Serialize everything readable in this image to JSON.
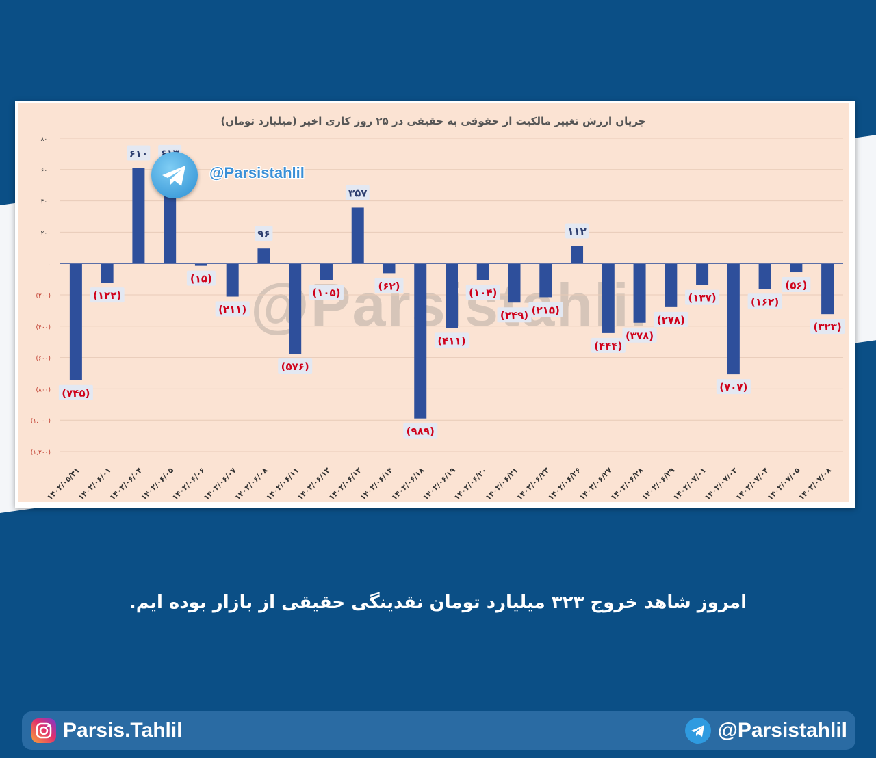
{
  "chart_data": {
    "type": "bar",
    "title": "جریان ارزش تغییر مالکیت از حقوقی به حقیقی در ۲۵ روز کاری اخیر (میلیارد تومان)",
    "ylim": [
      -1200,
      800
    ],
    "yticks": [
      800,
      600,
      400,
      200,
      0,
      -200,
      -400,
      -600,
      -800,
      -1000,
      -1200
    ],
    "ytick_labels": [
      "۸۰۰",
      "۶۰۰",
      "۴۰۰",
      "۲۰۰",
      "۰",
      "(۲۰۰)",
      "(۴۰۰)",
      "(۶۰۰)",
      "(۸۰۰)",
      "(۱,۰۰۰)",
      "(۱,۲۰۰)"
    ],
    "grid": true,
    "colors": {
      "bar": "#2e4f9b",
      "positive_label": "#2e3f6f",
      "negative_label": "#d0021b",
      "label_bg": "#e3e8f2"
    },
    "categories": [
      "۱۴۰۲/۰۵/۳۱",
      "۱۴۰۲/۰۶/۰۱",
      "۱۴۰۲/۰۶/۰۴",
      "۱۴۰۲/۰۶/۰۵",
      "۱۴۰۲/۰۶/۰۶",
      "۱۴۰۲/۰۶/۰۷",
      "۱۴۰۲/۰۶/۰۸",
      "۱۴۰۲/۰۶/۱۱",
      "۱۴۰۲/۰۶/۱۲",
      "۱۴۰۲/۰۶/۱۳",
      "۱۴۰۲/۰۶/۱۴",
      "۱۴۰۲/۰۶/۱۸",
      "۱۴۰۲/۰۶/۱۹",
      "۱۴۰۲/۰۶/۲۰",
      "۱۴۰۲/۰۶/۲۱",
      "۱۴۰۲/۰۶/۲۲",
      "۱۴۰۲/۰۶/۲۶",
      "۱۴۰۲/۰۶/۲۷",
      "۱۴۰۲/۰۶/۲۸",
      "۱۴۰۲/۰۶/۲۹",
      "۱۴۰۲/۰۷/۰۱",
      "۱۴۰۲/۰۷/۰۳",
      "۱۴۰۲/۰۷/۰۴",
      "۱۴۰۲/۰۷/۰۵",
      "۱۴۰۲/۰۷/۰۸"
    ],
    "values": [
      -745,
      -122,
      610,
      613,
      -15,
      -211,
      96,
      -576,
      -105,
      357,
      -62,
      -989,
      -411,
      -104,
      -249,
      -215,
      112,
      -444,
      -378,
      -278,
      -137,
      -707,
      -162,
      -56,
      -323
    ],
    "labels": [
      "(۷۴۵)",
      "(۱۲۲)",
      "۶۱۰",
      "۶۱۳",
      "(۱۵)",
      "(۲۱۱)",
      "۹۶",
      "(۵۷۶)",
      "(۱۰۵)",
      "۳۵۷",
      "(۶۲)",
      "(۹۸۹)",
      "(۴۱۱)",
      "(۱۰۴)",
      "(۲۴۹)",
      "(۲۱۵)",
      "۱۱۲",
      "(۴۴۴)",
      "(۳۷۸)",
      "(۲۷۸)",
      "(۱۳۷)",
      "(۷۰۷)",
      "(۱۶۲)",
      "(۵۶)",
      "(۳۲۳)"
    ]
  },
  "watermark": "@Parsistahlil",
  "chart_badge_handle": "@Parsistahlil",
  "caption": "امروز شاهد خروج ۳۲۳ میلیارد تومان نقدینگی حقیقی از بازار بوده ایم.",
  "footer": {
    "instagram_icon": "instagram-icon",
    "instagram_handle": "Parsis.Tahlil",
    "telegram_icon": "telegram-icon",
    "telegram_handle": "@Parsistahlil"
  }
}
